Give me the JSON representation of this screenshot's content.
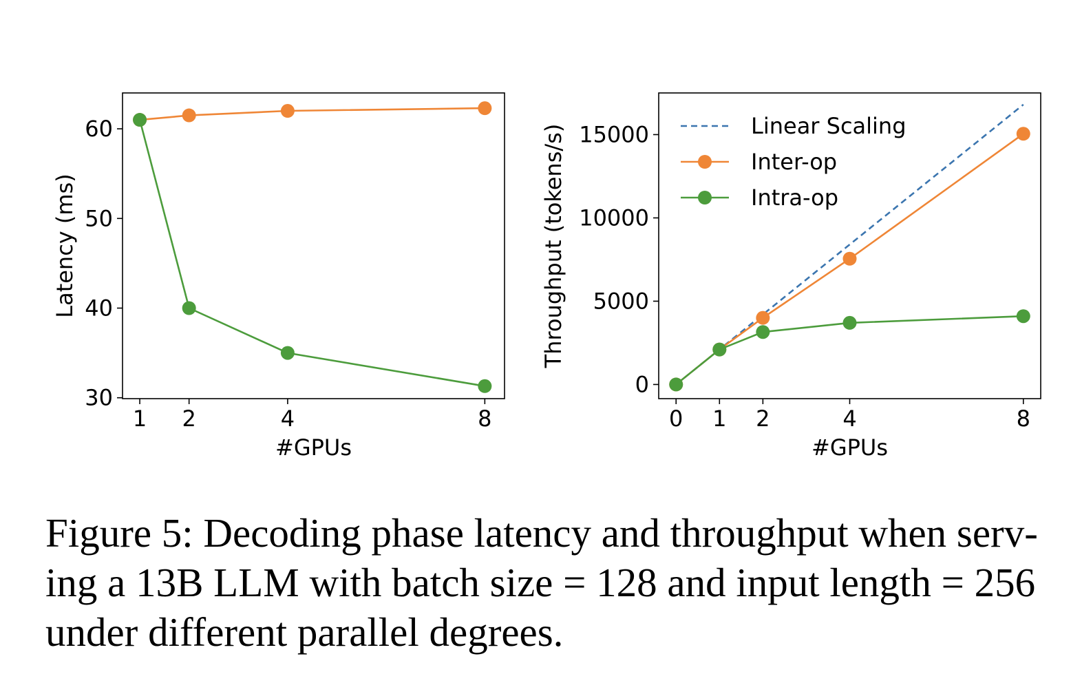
{
  "chart_data": [
    {
      "type": "line",
      "x": [
        1,
        2,
        4,
        8
      ],
      "xlabel": "#GPUs",
      "ylabel": "Latency (ms)",
      "xlim": [
        0.65,
        8.4
      ],
      "ylim": [
        29.9,
        64.0
      ],
      "xticks": [
        1,
        2,
        4,
        8
      ],
      "yticks": [
        30,
        40,
        50,
        60
      ],
      "grid": false,
      "series": [
        {
          "name": "Inter-op",
          "color": "#ef8636",
          "marker": "circle",
          "values": [
            61.0,
            61.5,
            62.0,
            62.3
          ]
        },
        {
          "name": "Intra-op",
          "color": "#4c9c3c",
          "marker": "circle",
          "values": [
            61.0,
            40.0,
            35.0,
            31.3
          ]
        }
      ]
    },
    {
      "type": "line",
      "x": [
        0,
        1,
        2,
        4,
        8
      ],
      "xlabel": "#GPUs",
      "ylabel": "Throughput (tokens/s)",
      "xlim": [
        -0.4,
        8.4
      ],
      "ylim": [
        -850,
        17500
      ],
      "xticks": [
        0,
        1,
        2,
        4,
        8
      ],
      "yticks": [
        0,
        5000,
        10000,
        15000
      ],
      "grid": false,
      "legend": "top-left",
      "series": [
        {
          "name": "Linear Scaling",
          "color": "#3b75af",
          "style": "dashed",
          "x": [
            0,
            8
          ],
          "values": [
            0,
            16800
          ]
        },
        {
          "name": "Inter-op",
          "color": "#ef8636",
          "marker": "circle",
          "x": [
            0,
            1,
            2,
            4,
            8
          ],
          "values": [
            0,
            2100,
            4000,
            7550,
            15050
          ]
        },
        {
          "name": "Intra-op",
          "color": "#4c9c3c",
          "marker": "circle",
          "x": [
            0,
            1,
            2,
            4,
            8
          ],
          "values": [
            0,
            2100,
            3150,
            3700,
            4100
          ]
        }
      ]
    }
  ],
  "caption": {
    "lines": [
      "Figure 5: Decoding phase latency and throughput when serv-",
      "ing a 13B LLM with batch size = 128 and input length = 256",
      "under different parallel degrees."
    ]
  }
}
